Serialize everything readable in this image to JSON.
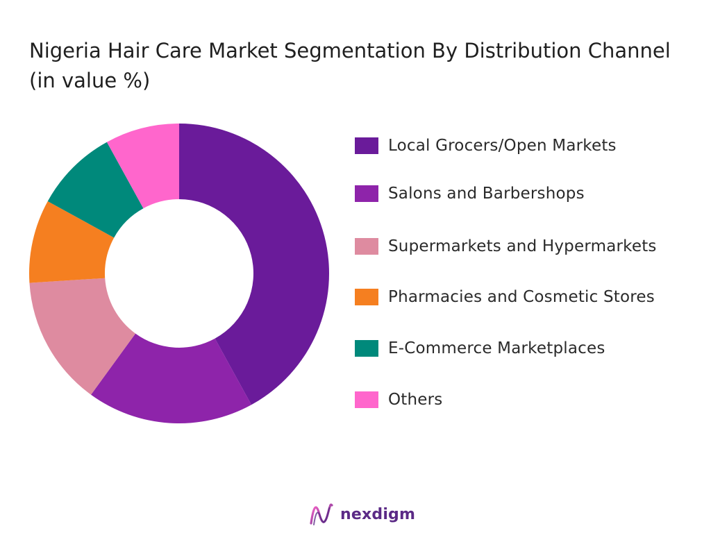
{
  "chart_data": {
    "type": "pie",
    "variant": "donut",
    "title": "Nigeria Hair Care Market Segmentation By Distribution Channel (in value %)",
    "categories": [
      "Local Grocers/Open Markets",
      "Salons and Barbershops",
      "Supermarkets and Hypermarkets",
      "Pharmacies and Cosmetic Stores",
      "E-Commerce Marketplaces",
      "Others"
    ],
    "values": [
      42,
      18,
      14,
      9,
      9,
      8
    ],
    "colors": [
      "#6a1b9a",
      "#8e24aa",
      "#de8ba0",
      "#f57f20",
      "#00897b",
      "#ff66cc"
    ],
    "legend_position": "right"
  },
  "brand": {
    "name": "nexdigm",
    "logo_icon": "nexdigm-wave-logo-icon"
  }
}
